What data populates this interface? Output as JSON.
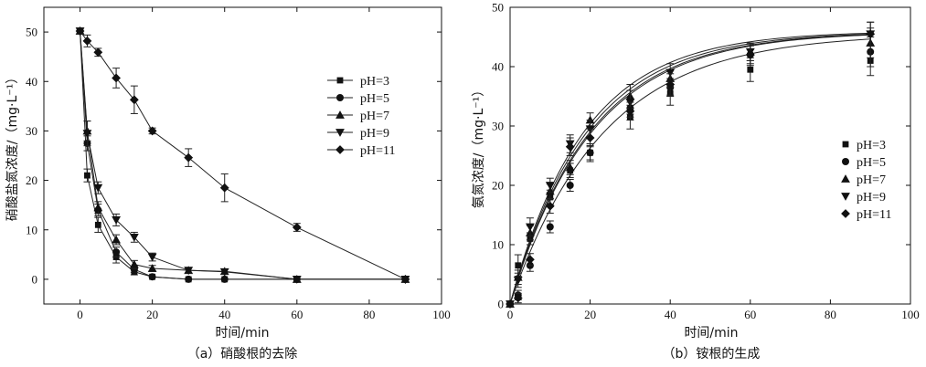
{
  "chart_data": [
    {
      "type": "line",
      "caption": "（a）硝酸根的去除",
      "xlabel": "时间/min",
      "ylabel": "硝酸盐氮浓度/（mg·L⁻¹）",
      "xlim": [
        -10,
        100
      ],
      "ylim": [
        -5,
        55
      ],
      "xticks": [
        0,
        20,
        40,
        60,
        80,
        100
      ],
      "yticks": [
        0,
        10,
        20,
        30,
        40,
        50
      ],
      "legend_position": "right",
      "series": [
        {
          "name": "pH=3",
          "marker": "square",
          "x": [
            0,
            2,
            5,
            10,
            15,
            20,
            30,
            40,
            60,
            90
          ],
          "y": [
            50.2,
            21,
            11,
            4.5,
            1.5,
            0.5,
            0,
            0,
            0,
            0
          ],
          "err": [
            0.6,
            1.3,
            1.5,
            1.2,
            0.6,
            0.4,
            0.3,
            0.3,
            0.3,
            0.3
          ]
        },
        {
          "name": "pH=5",
          "marker": "circle",
          "x": [
            0,
            2,
            5,
            10,
            15,
            20,
            30,
            40,
            60,
            90
          ],
          "y": [
            50.2,
            27.5,
            14,
            5.5,
            2,
            0.5,
            0,
            0,
            0,
            0
          ],
          "err": [
            0.6,
            1.5,
            1.2,
            1.0,
            0.6,
            0.4,
            0.3,
            0.3,
            0.3,
            0.3
          ]
        },
        {
          "name": "pH=7",
          "marker": "triangle-up",
          "x": [
            0,
            2,
            5,
            10,
            15,
            20,
            30,
            40,
            60,
            90
          ],
          "y": [
            50.2,
            30,
            14.5,
            8,
            3,
            2.2,
            1.8,
            1.6,
            0,
            0
          ],
          "err": [
            0.6,
            2.0,
            1.2,
            1.0,
            0.8,
            0.6,
            0.5,
            0.5,
            0.3,
            0.3
          ]
        },
        {
          "name": "pH=9",
          "marker": "triangle-down",
          "x": [
            0,
            2,
            5,
            10,
            15,
            20,
            30,
            40,
            60,
            90
          ],
          "y": [
            50.2,
            29.5,
            18.5,
            12,
            8.5,
            4.5,
            1.8,
            1.5,
            0,
            0
          ],
          "err": [
            0.6,
            2.5,
            1.2,
            1.2,
            1.0,
            0.8,
            0.6,
            0.5,
            0.3,
            0.3
          ]
        },
        {
          "name": "pH=11",
          "marker": "diamond",
          "x": [
            0,
            2,
            5,
            10,
            15,
            20,
            30,
            40,
            60,
            90
          ],
          "y": [
            50.2,
            48.2,
            45.9,
            40.7,
            36.3,
            30,
            24.6,
            18.5,
            10.5,
            0
          ],
          "err": [
            0.6,
            1.2,
            0.8,
            2.0,
            2.8,
            0.6,
            1.8,
            2.8,
            0.8,
            0.3
          ]
        }
      ]
    },
    {
      "type": "scatter",
      "caption": "（b）铵根的生成",
      "xlabel": "时间/min",
      "ylabel": "氨氮浓度/（mg·L⁻¹）",
      "xlim": [
        0,
        100
      ],
      "ylim": [
        0,
        50
      ],
      "xticks": [
        0,
        20,
        40,
        60,
        80,
        100
      ],
      "yticks": [
        0,
        10,
        20,
        30,
        40,
        50
      ],
      "legend_position": "right",
      "fit_curves": true,
      "series": [
        {
          "name": "pH=3",
          "marker": "square",
          "x": [
            0,
            2,
            5,
            10,
            15,
            20,
            30,
            40,
            60,
            90
          ],
          "y": [
            0,
            6.5,
            11,
            18,
            22.5,
            25.5,
            31.5,
            35.5,
            39.5,
            41
          ],
          "err": [
            0.5,
            1.8,
            1.0,
            1.2,
            1.2,
            1.5,
            2.0,
            2.0,
            2.0,
            2.5
          ],
          "fit_asymptote": 45.9,
          "fit_rate": 0.05
        },
        {
          "name": "pH=5",
          "marker": "circle",
          "x": [
            0,
            2,
            5,
            10,
            15,
            20,
            30,
            40,
            60,
            90
          ],
          "y": [
            0,
            1.5,
            6.5,
            13,
            20,
            25.5,
            33,
            36.5,
            42,
            42.5
          ],
          "err": [
            0.5,
            0.8,
            1.0,
            1.0,
            1.0,
            1.2,
            1.5,
            1.5,
            1.5,
            2.5
          ],
          "fit_asymptote": 45.6,
          "fit_rate": 0.043
        },
        {
          "name": "pH=7",
          "marker": "triangle-up",
          "x": [
            0,
            2,
            5,
            10,
            15,
            20,
            30,
            40,
            60,
            90
          ],
          "y": [
            0,
            4.5,
            12,
            19,
            23,
            31,
            35,
            38,
            42.5,
            44
          ],
          "err": [
            0.5,
            1.2,
            1.2,
            1.2,
            1.2,
            1.2,
            2.0,
            1.5,
            1.5,
            2.5
          ],
          "fit_asymptote": 45.9,
          "fit_rate": 0.052
        },
        {
          "name": "pH=9",
          "marker": "triangle-down",
          "x": [
            0,
            2,
            5,
            10,
            15,
            20,
            30,
            40,
            60,
            90
          ],
          "y": [
            0,
            4,
            13,
            20,
            27,
            29.5,
            34,
            39,
            42.5,
            45.5
          ],
          "err": [
            0.5,
            1.2,
            1.5,
            1.2,
            1.5,
            1.5,
            2.0,
            1.5,
            1.5,
            2.0
          ],
          "fit_asymptote": 46.0,
          "fit_rate": 0.054
        },
        {
          "name": "pH=11",
          "marker": "diamond",
          "x": [
            0,
            2,
            5,
            10,
            15,
            20,
            30,
            40,
            60,
            90
          ],
          "y": [
            0,
            1,
            7.5,
            16.5,
            26.5,
            28,
            32.5,
            37,
            42,
            45.5
          ],
          "err": [
            0.5,
            0.8,
            1.0,
            1.2,
            1.5,
            1.5,
            1.5,
            1.8,
            1.8,
            2.0
          ],
          "fit_asymptote": 45.9,
          "fit_rate": 0.049
        }
      ]
    }
  ]
}
